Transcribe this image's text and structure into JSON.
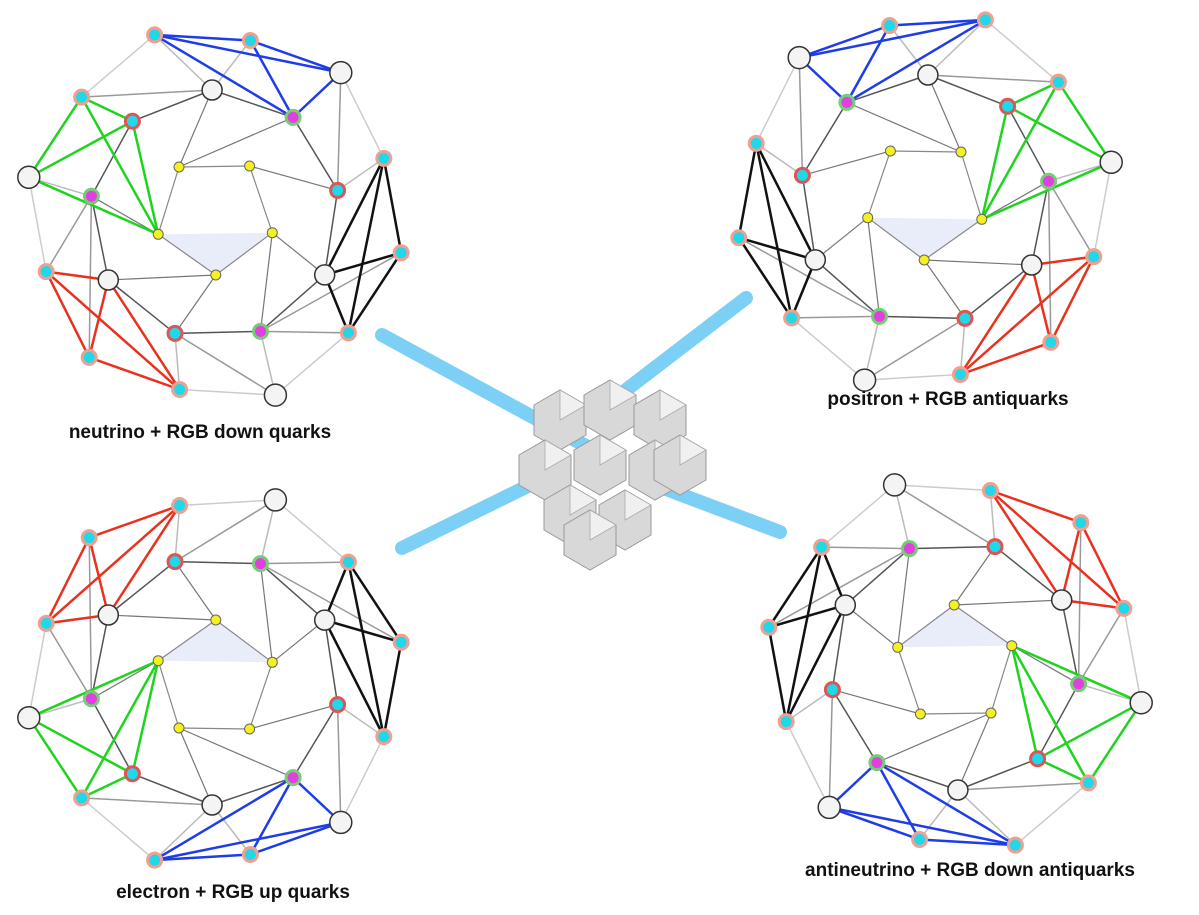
{
  "diagrams": [
    {
      "label": "neutrino + RGB down quarks"
    },
    {
      "label": "positron + RGB antiquarks"
    },
    {
      "label": "electron + RGB up quarks"
    },
    {
      "label": "antineutrino + RGB down antiquarks"
    }
  ]
}
